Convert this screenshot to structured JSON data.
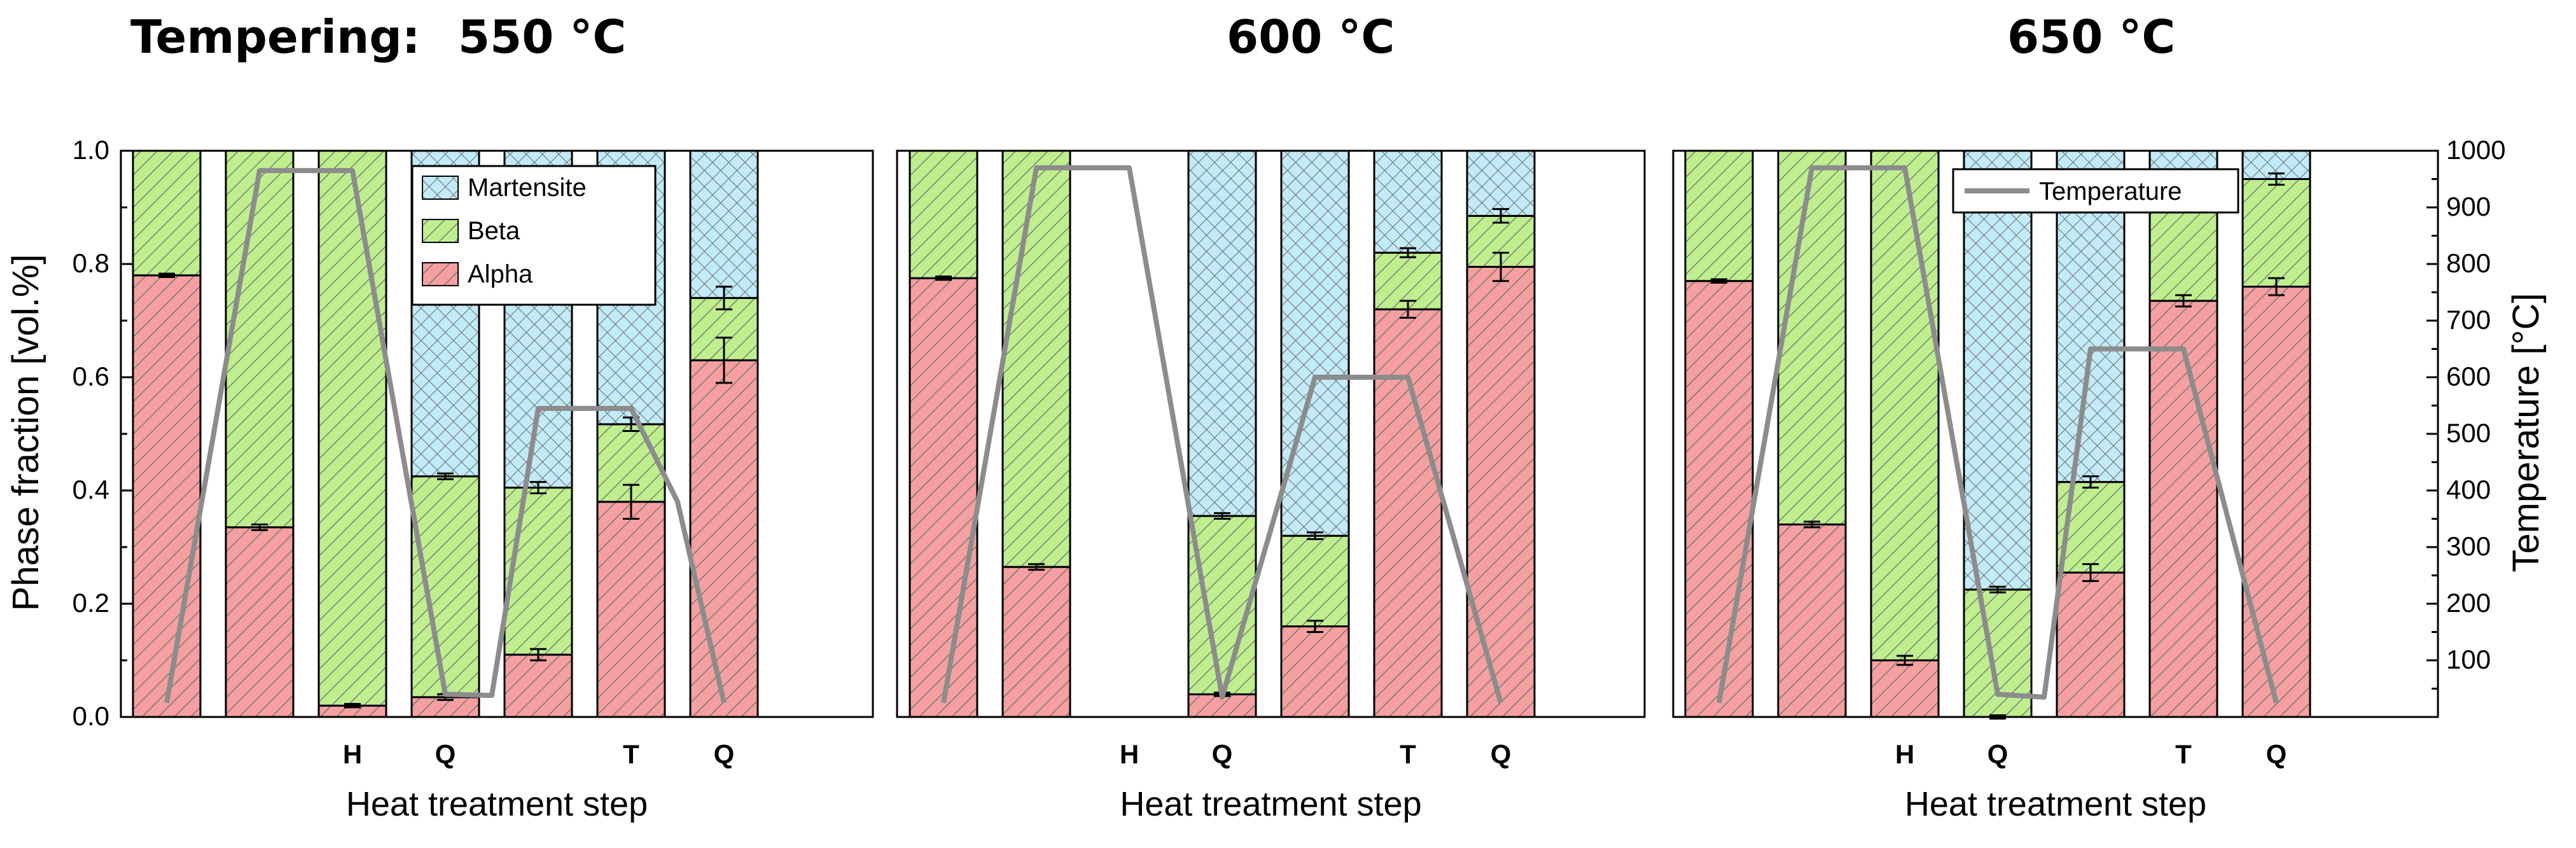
{
  "header": {
    "label": "Tempering:",
    "temps": [
      "550 °C",
      "600 °C",
      "650 °C"
    ]
  },
  "colors": {
    "alpha": "#f4a0a0",
    "beta": "#bfee8e",
    "martensite": "#c2eaf7",
    "hatch": "#666666",
    "temperature_line": "#8c8c8c"
  },
  "chart_data": [
    {
      "type": "bar",
      "stacked": true,
      "title": "550 °C",
      "xlabel": "Heat treatment step",
      "ylabel": "Phase fraction [vol.%]",
      "y2label": "Temperature [°C]",
      "ylim": [
        0,
        1.0
      ],
      "y2lim": [
        0,
        1000
      ],
      "yticks": [
        "0.0",
        "0.2",
        "0.4",
        "0.6",
        "0.8",
        "1.0"
      ],
      "step_labels": [
        "",
        "",
        "H",
        "Q",
        "",
        "T",
        "Q"
      ],
      "legend": {
        "entries": [
          "Martensite",
          "Beta",
          "Alpha"
        ],
        "placement": "top-center"
      },
      "series": [
        {
          "name": "Alpha",
          "values": [
            0.78,
            0.335,
            0.02,
            0.035,
            0.11,
            0.38,
            0.63
          ],
          "errors": [
            0.003,
            0.005,
            0.003,
            0.005,
            0.01,
            0.03,
            0.04
          ]
        },
        {
          "name": "Beta",
          "values": [
            0.22,
            0.665,
            0.98,
            0.39,
            0.295,
            0.137,
            0.11
          ],
          "errors": [
            0,
            0,
            0,
            0.005,
            0.01,
            0.012,
            0.02
          ]
        },
        {
          "name": "Martensite",
          "values": [
            0,
            0,
            0,
            0.575,
            0.595,
            0.483,
            0.26
          ],
          "errors": [
            0,
            0,
            0,
            0,
            0,
            0,
            0
          ]
        }
      ],
      "temperature": {
        "name": "Temperature",
        "x": [
          0,
          1,
          2,
          3,
          3.5,
          4,
          5,
          5.5,
          6
        ],
        "y": [
          25,
          965,
          965,
          40,
          38,
          545,
          545,
          380,
          25
        ]
      }
    },
    {
      "type": "bar",
      "stacked": true,
      "title": "600 °C",
      "xlabel": "Heat treatment step",
      "ylim": [
        0,
        1.0
      ],
      "y2lim": [
        0,
        1000
      ],
      "step_labels": [
        "",
        "",
        "H",
        "Q",
        "",
        "T",
        "Q"
      ],
      "series": [
        {
          "name": "Alpha",
          "values": [
            0.775,
            0.265,
            0,
            0.04,
            0.16,
            0.72,
            0.795
          ],
          "errors": [
            0.003,
            0.005,
            0,
            0.003,
            0.01,
            0.015,
            0.025
          ]
        },
        {
          "name": "Beta",
          "values": [
            0.225,
            0.735,
            0,
            0.315,
            0.16,
            0.1,
            0.09
          ],
          "errors": [
            0,
            0,
            0,
            0.005,
            0.006,
            0.008,
            0.012
          ]
        },
        {
          "name": "Martensite",
          "values": [
            0,
            0,
            0,
            0.645,
            0.68,
            0.18,
            0.115
          ],
          "errors": [
            0,
            0,
            0,
            0,
            0,
            0,
            0
          ]
        }
      ],
      "temperature": {
        "name": "Temperature",
        "x": [
          0,
          1,
          2,
          3,
          4,
          5,
          6
        ],
        "y": [
          25,
          970,
          970,
          35,
          600,
          600,
          25
        ]
      }
    },
    {
      "type": "bar",
      "stacked": true,
      "title": "650 °C",
      "xlabel": "Heat treatment step",
      "ylim": [
        0,
        1.0
      ],
      "y2lim": [
        0,
        1000
      ],
      "y2ticks": [
        "100",
        "200",
        "300",
        "400",
        "500",
        "600",
        "700",
        "800",
        "900",
        "1000"
      ],
      "step_labels": [
        "",
        "",
        "H",
        "Q",
        "",
        "T",
        "Q"
      ],
      "legend": {
        "entries": [
          "Temperature"
        ],
        "placement": "top-right"
      },
      "series": [
        {
          "name": "Alpha",
          "values": [
            0.77,
            0.34,
            0.1,
            0.0,
            0.255,
            0.735,
            0.76
          ],
          "errors": [
            0.003,
            0.005,
            0.008,
            0.003,
            0.015,
            0.01,
            0.015
          ]
        },
        {
          "name": "Beta",
          "values": [
            0.23,
            0.66,
            0.9,
            0.225,
            0.16,
            0.2,
            0.19
          ],
          "errors": [
            0,
            0,
            0,
            0.005,
            0.01,
            0.008,
            0.01
          ]
        },
        {
          "name": "Martensite",
          "values": [
            0,
            0,
            0,
            0.775,
            0.585,
            0.065,
            0.05
          ],
          "errors": [
            0,
            0,
            0,
            0,
            0,
            0,
            0
          ]
        }
      ],
      "temperature": {
        "name": "Temperature",
        "x": [
          0,
          1,
          2,
          3,
          3.5,
          4,
          5,
          6
        ],
        "y": [
          25,
          970,
          970,
          40,
          35,
          650,
          650,
          25
        ]
      }
    }
  ]
}
